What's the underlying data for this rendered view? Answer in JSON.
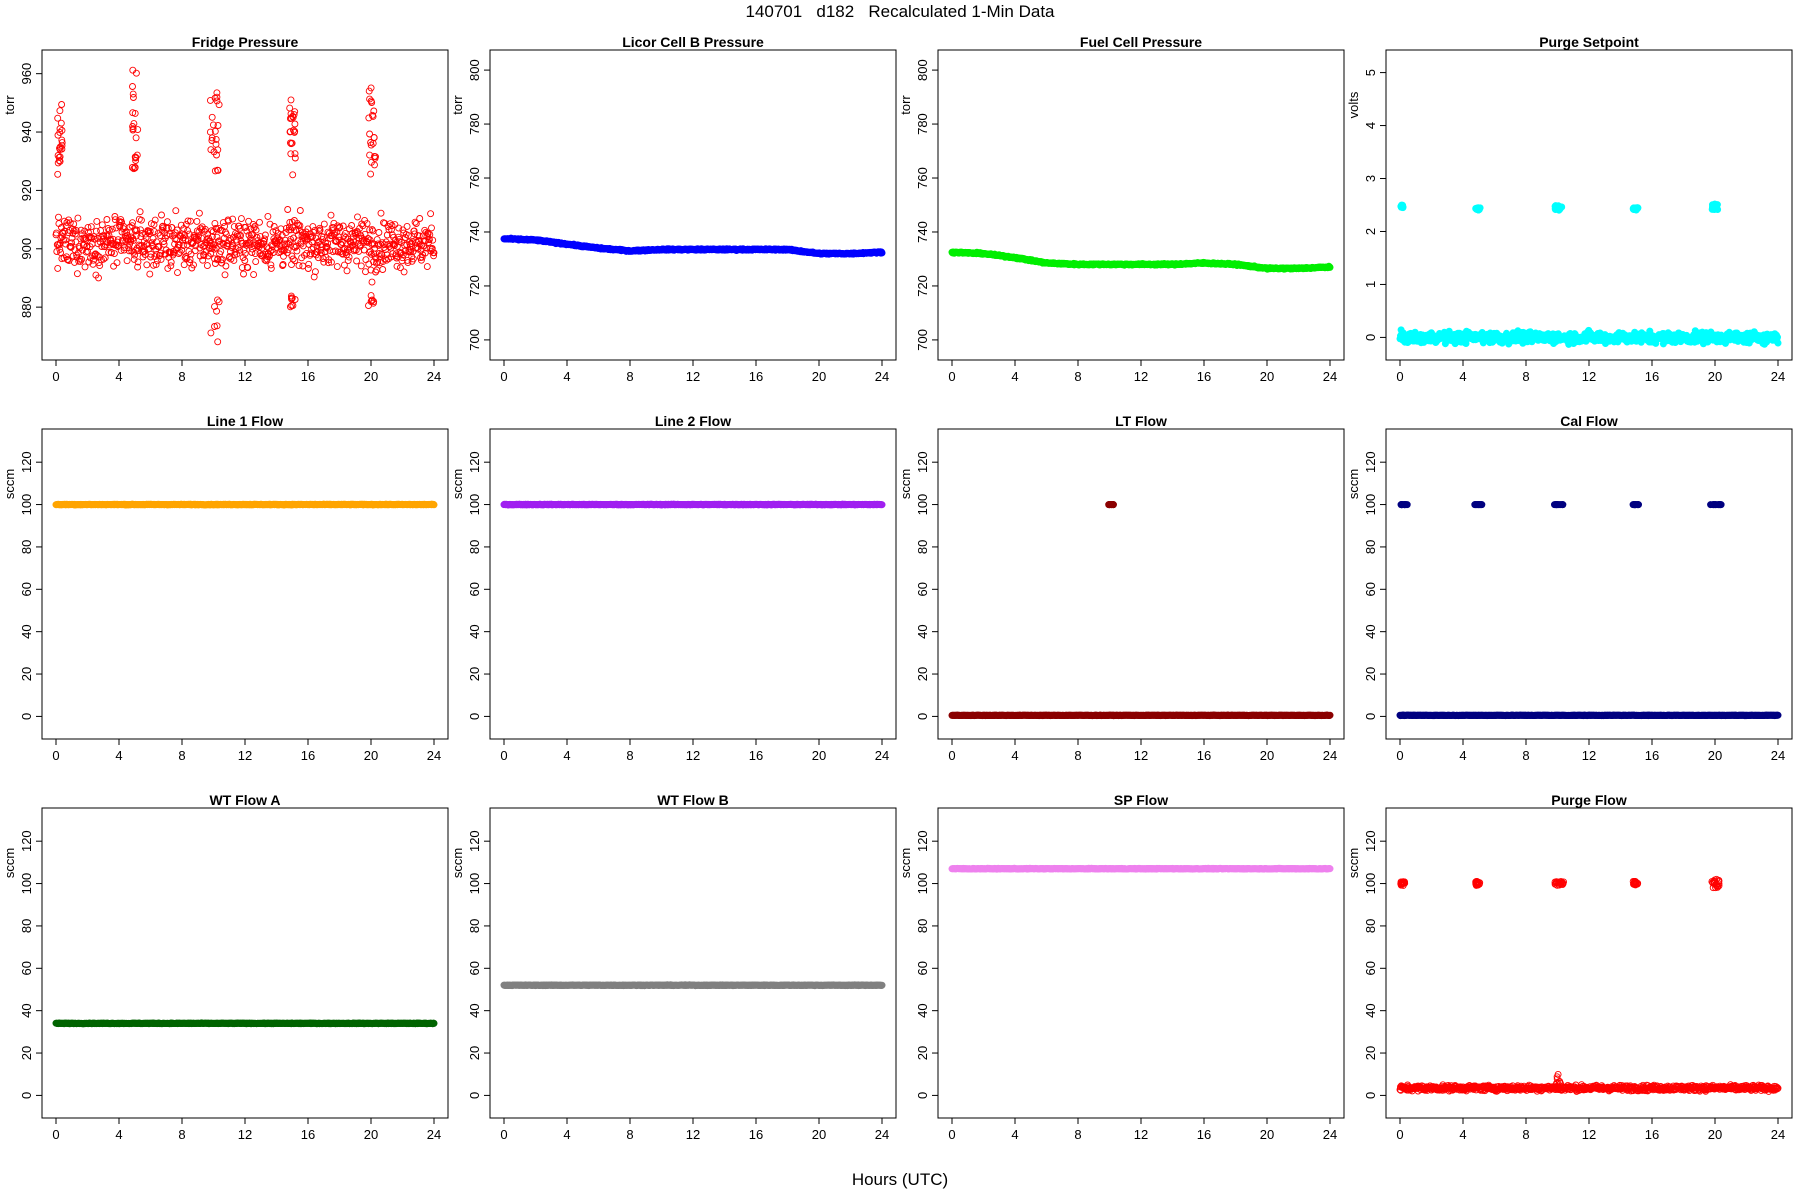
{
  "header": {
    "title": "140701   d182   Recalculated 1-Min Data"
  },
  "footer": {
    "xlabel": "Hours (UTC)"
  },
  "chart_data": [
    {
      "type": "scatter",
      "title": "Fridge Pressure",
      "ylabel": "torr",
      "xlim": [
        0,
        24
      ],
      "ylim": [
        866,
        964
      ],
      "xticks": [
        0,
        4,
        8,
        12,
        16,
        20,
        24
      ],
      "yticks": [
        880,
        900,
        920,
        940,
        960
      ],
      "series": [
        {
          "color": "#ff0000",
          "marker": "open-circle",
          "pattern": "noise",
          "base": 902,
          "spread": 8,
          "bursts": [
            {
              "x": [
                0.1,
                0.4
              ],
              "y": [
                925,
                954
              ]
            },
            {
              "x": [
                4.8,
                5.2
              ],
              "y": [
                925,
                962
              ]
            },
            {
              "x": [
                9.8,
                10.4
              ],
              "y": [
                925,
                955
              ]
            },
            {
              "x": [
                14.8,
                15.2
              ],
              "y": [
                925,
                951
              ]
            },
            {
              "x": [
                19.8,
                20.3
              ],
              "y": [
                925,
                957
              ]
            }
          ],
          "lows": [
            {
              "x": [
                9.8,
                10.4
              ],
              "y": [
                867,
                885
              ]
            },
            {
              "x": [
                14.8,
                15.2
              ],
              "y": [
                880,
                884
              ]
            },
            {
              "x": [
                19.8,
                20.2
              ],
              "y": [
                876,
                890
              ]
            }
          ]
        }
      ]
    },
    {
      "type": "scatter",
      "title": "Licor Cell B Pressure",
      "ylabel": "torr",
      "xlim": [
        0,
        24
      ],
      "ylim": [
        697,
        803
      ],
      "xticks": [
        0,
        4,
        8,
        12,
        16,
        20,
        24
      ],
      "yticks": [
        700,
        720,
        740,
        760,
        780,
        800
      ],
      "series": [
        {
          "color": "#0000ff",
          "marker": "filled",
          "pattern": "curve",
          "x": [
            0,
            2,
            4,
            6,
            8,
            10,
            12,
            14,
            16,
            18,
            20,
            22,
            24
          ],
          "y": [
            737.5,
            737,
            735.5,
            734,
            733,
            733.5,
            733.5,
            733.5,
            733.5,
            733.5,
            732,
            732,
            732.5
          ]
        }
      ]
    },
    {
      "type": "scatter",
      "title": "Fuel Cell Pressure",
      "ylabel": "torr",
      "xlim": [
        0,
        24
      ],
      "ylim": [
        697,
        803
      ],
      "xticks": [
        0,
        4,
        8,
        12,
        16,
        20,
        24
      ],
      "yticks": [
        700,
        720,
        740,
        760,
        780,
        800
      ],
      "series": [
        {
          "color": "#00ee00",
          "marker": "filled",
          "pattern": "curve",
          "x": [
            0,
            2,
            4,
            6,
            8,
            10,
            12,
            14,
            16,
            18,
            20,
            22,
            24
          ],
          "y": [
            732.5,
            732,
            730.5,
            728.5,
            728,
            728,
            728,
            728,
            728.5,
            728,
            726.5,
            726.5,
            727
          ]
        }
      ]
    },
    {
      "type": "scatter",
      "title": "Purge Setpoint",
      "ylabel": "volts",
      "xlim": [
        0,
        24
      ],
      "ylim": [
        -0.2,
        5.2
      ],
      "xticks": [
        0,
        4,
        8,
        12,
        16,
        20,
        24
      ],
      "yticks": [
        0,
        1,
        2,
        3,
        4,
        5
      ],
      "series": [
        {
          "color": "#00ffff",
          "marker": "filled",
          "pattern": "base-with-bursts",
          "base": 0,
          "bursts": [
            {
              "x": [
                0.05,
                0.2
              ],
              "y": [
                2.45,
                2.5
              ]
            },
            {
              "x": [
                4.8,
                5.1
              ],
              "y": [
                2.4,
                2.45
              ]
            },
            {
              "x": [
                9.8,
                10.4
              ],
              "y": [
                2.4,
                2.52
              ]
            },
            {
              "x": [
                14.8,
                15.1
              ],
              "y": [
                2.4,
                2.45
              ]
            },
            {
              "x": [
                19.8,
                20.2
              ],
              "y": [
                2.4,
                2.52
              ]
            }
          ]
        }
      ]
    },
    {
      "type": "scatter",
      "title": "Line 1 Flow",
      "ylabel": "sccm",
      "xlim": [
        0,
        24
      ],
      "ylim": [
        -5,
        130
      ],
      "xticks": [
        0,
        4,
        8,
        12,
        16,
        20,
        24
      ],
      "yticks": [
        0,
        20,
        40,
        60,
        80,
        100,
        120
      ],
      "series": [
        {
          "color": "#ffa500",
          "marker": "filled",
          "pattern": "flat",
          "value": 100
        }
      ]
    },
    {
      "type": "scatter",
      "title": "Line 2 Flow",
      "ylabel": "sccm",
      "xlim": [
        0,
        24
      ],
      "ylim": [
        -5,
        130
      ],
      "xticks": [
        0,
        4,
        8,
        12,
        16,
        20,
        24
      ],
      "yticks": [
        0,
        20,
        40,
        60,
        80,
        100,
        120
      ],
      "series": [
        {
          "color": "#a020f0",
          "marker": "filled",
          "pattern": "flat",
          "value": 100
        }
      ]
    },
    {
      "type": "scatter",
      "title": "LT Flow",
      "ylabel": "sccm",
      "xlim": [
        0,
        24
      ],
      "ylim": [
        -5,
        130
      ],
      "xticks": [
        0,
        4,
        8,
        12,
        16,
        20,
        24
      ],
      "yticks": [
        0,
        20,
        40,
        60,
        80,
        100,
        120
      ],
      "series": [
        {
          "color": "#8b0000",
          "marker": "filled",
          "pattern": "base-with-bursts",
          "base": 0.5,
          "bursts": [
            {
              "x": [
                9.9,
                10.3
              ],
              "y": [
                100,
                100
              ]
            }
          ]
        }
      ]
    },
    {
      "type": "scatter",
      "title": "Cal Flow",
      "ylabel": "sccm",
      "xlim": [
        0,
        24
      ],
      "ylim": [
        -5,
        130
      ],
      "xticks": [
        0,
        4,
        8,
        12,
        16,
        20,
        24
      ],
      "yticks": [
        0,
        20,
        40,
        60,
        80,
        100,
        120
      ],
      "series": [
        {
          "color": "#000080",
          "marker": "filled",
          "pattern": "base-with-bursts",
          "base": 0.5,
          "bursts": [
            {
              "x": [
                0.05,
                0.5
              ],
              "y": [
                100,
                100
              ]
            },
            {
              "x": [
                4.7,
                5.2
              ],
              "y": [
                100,
                100
              ]
            },
            {
              "x": [
                9.8,
                10.4
              ],
              "y": [
                100,
                100
              ]
            },
            {
              "x": [
                14.7,
                15.2
              ],
              "y": [
                100,
                100
              ]
            },
            {
              "x": [
                19.7,
                20.4
              ],
              "y": [
                100,
                100
              ]
            }
          ]
        }
      ]
    },
    {
      "type": "scatter",
      "title": "WT Flow A",
      "ylabel": "sccm",
      "xlim": [
        0,
        24
      ],
      "ylim": [
        -5,
        130
      ],
      "xticks": [
        0,
        4,
        8,
        12,
        16,
        20,
        24
      ],
      "yticks": [
        0,
        20,
        40,
        60,
        80,
        100,
        120
      ],
      "series": [
        {
          "color": "#006400",
          "marker": "filled",
          "pattern": "flat",
          "value": 34
        }
      ]
    },
    {
      "type": "scatter",
      "title": "WT Flow B",
      "ylabel": "sccm",
      "xlim": [
        0,
        24
      ],
      "ylim": [
        -5,
        130
      ],
      "xticks": [
        0,
        4,
        8,
        12,
        16,
        20,
        24
      ],
      "yticks": [
        0,
        20,
        40,
        60,
        80,
        100,
        120
      ],
      "series": [
        {
          "color": "#808080",
          "marker": "filled",
          "pattern": "flat",
          "value": 52
        }
      ]
    },
    {
      "type": "scatter",
      "title": "SP Flow",
      "ylabel": "sccm",
      "xlim": [
        0,
        24
      ],
      "ylim": [
        -5,
        130
      ],
      "xticks": [
        0,
        4,
        8,
        12,
        16,
        20,
        24
      ],
      "yticks": [
        0,
        20,
        40,
        60,
        80,
        100,
        120
      ],
      "series": [
        {
          "color": "#ee82ee",
          "marker": "filled",
          "pattern": "flat",
          "value": 107
        }
      ]
    },
    {
      "type": "scatter",
      "title": "Purge Flow",
      "ylabel": "sccm",
      "xlim": [
        0,
        24
      ],
      "ylim": [
        -5,
        130
      ],
      "xticks": [
        0,
        4,
        8,
        12,
        16,
        20,
        24
      ],
      "yticks": [
        0,
        20,
        40,
        60,
        80,
        100,
        120
      ],
      "series": [
        {
          "color": "#ff0000",
          "marker": "open-circle",
          "pattern": "noise",
          "base": 3.5,
          "spread": 1.2,
          "bursts": [
            {
              "x": [
                0.05,
                0.3
              ],
              "y": [
                99,
                101
              ]
            },
            {
              "x": [
                4.8,
                5.1
              ],
              "y": [
                99,
                101
              ]
            },
            {
              "x": [
                9.8,
                10.4
              ],
              "y": [
                99,
                101
              ]
            },
            {
              "x": [
                14.8,
                15.1
              ],
              "y": [
                99,
                101
              ]
            },
            {
              "x": [
                19.8,
                20.3
              ],
              "y": [
                98,
                102
              ]
            }
          ],
          "lows": [
            {
              "x": [
                9.9,
                10.2
              ],
              "y": [
                5,
                10
              ]
            }
          ]
        }
      ]
    }
  ]
}
